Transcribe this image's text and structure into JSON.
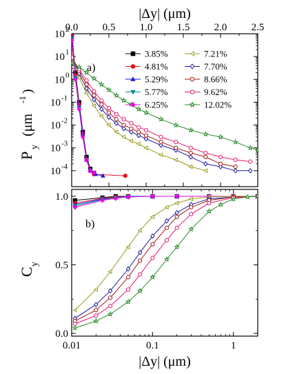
{
  "chart_data": [
    {
      "panel_label": "a)",
      "type": "line",
      "x_scale": "linear",
      "y_scale": "log",
      "xlabel": "|Δy| (μm)",
      "ylabel": "P",
      "ylabel_sub": "y",
      "ylabel_unit": "(μm",
      "ylabel_sup": "-1",
      "ylabel_close": ")",
      "xlim": [
        0,
        2.5
      ],
      "ylim": [
        2e-05,
        100
      ],
      "x_ticks": [
        "0.0",
        "0.5",
        "1.0",
        "1.5",
        "2.0",
        "2.5"
      ],
      "y_ticks": [
        {
          "base": "10",
          "exp": "2"
        },
        {
          "base": "10",
          "exp": "1"
        },
        {
          "base": "10",
          "exp": "0"
        },
        {
          "base": "10",
          "exp": "-1"
        },
        {
          "base": "10",
          "exp": "-2"
        },
        {
          "base": "10",
          "exp": "-3"
        },
        {
          "base": "10",
          "exp": "-4"
        }
      ],
      "legend_position": "top-right",
      "series": [
        {
          "name": "3.85%",
          "color": "#000000",
          "marker": "square",
          "filled": true,
          "x": [
            0.003,
            0.05,
            0.1,
            0.15,
            0.2,
            0.25,
            0.3
          ],
          "y": [
            100,
            2,
            0.1,
            0.005,
            0.0004,
            0.00012,
            8e-05
          ]
        },
        {
          "name": "4.81%",
          "color": "#e8101c",
          "marker": "circle",
          "filled": true,
          "x": [
            0.003,
            0.05,
            0.1,
            0.15,
            0.2,
            0.25,
            0.3,
            0.72
          ],
          "y": [
            80,
            1.5,
            0.08,
            0.004,
            0.0003,
            0.0001,
            7e-05,
            6e-05
          ]
        },
        {
          "name": "5.29%",
          "color": "#1a1ae0",
          "marker": "triangle-up",
          "filled": true,
          "x": [
            0.003,
            0.05,
            0.1,
            0.15,
            0.2,
            0.25,
            0.32,
            0.42
          ],
          "y": [
            70,
            1.3,
            0.07,
            0.004,
            0.0003,
            0.0001,
            7e-05,
            6e-05
          ]
        },
        {
          "name": "5.77%",
          "color": "#008b8b",
          "marker": "triangle-down",
          "filled": true,
          "x": [
            0.003,
            0.05,
            0.1,
            0.15,
            0.2,
            0.25,
            0.3
          ],
          "y": [
            60,
            1.2,
            0.06,
            0.003,
            0.0003,
            0.0001,
            8e-05
          ]
        },
        {
          "name": "6.25%",
          "color": "#ee00ee",
          "marker": "diamond",
          "filled": true,
          "x": [
            0.003,
            0.05,
            0.1,
            0.15,
            0.2,
            0.25,
            0.3
          ],
          "y": [
            50,
            1.0,
            0.05,
            0.003,
            0.0003,
            0.0001,
            8e-05
          ]
        },
        {
          "name": "7.21%",
          "color": "#9a9a1c",
          "marker": "triangle-left",
          "filled": false,
          "x": [
            0.003,
            0.1,
            0.2,
            0.3,
            0.4,
            0.5,
            0.6,
            0.7,
            0.8,
            0.9,
            1.0,
            1.2,
            1.4,
            1.6,
            1.8
          ],
          "y": [
            10,
            1.2,
            0.25,
            0.07,
            0.025,
            0.01,
            0.005,
            0.003,
            0.002,
            0.0015,
            0.001,
            0.0005,
            0.0003,
            0.00015,
            0.0001
          ]
        },
        {
          "name": "7.70%",
          "color": "#1c1c9a",
          "marker": "diamond",
          "filled": false,
          "x": [
            0.003,
            0.1,
            0.2,
            0.3,
            0.4,
            0.5,
            0.6,
            0.7,
            0.8,
            0.9,
            1.0,
            1.2,
            1.4,
            1.6,
            1.8,
            2.0,
            2.2,
            2.4
          ],
          "y": [
            10,
            1.8,
            0.4,
            0.13,
            0.05,
            0.022,
            0.012,
            0.007,
            0.005,
            0.0035,
            0.0025,
            0.0013,
            0.0008,
            0.0004,
            0.0002,
            0.00015,
            0.0001,
            0.0001
          ]
        },
        {
          "name": "8.66%",
          "color": "#a01818",
          "marker": "circle",
          "filled": false,
          "x": [
            0.003,
            0.1,
            0.2,
            0.3,
            0.4,
            0.5,
            0.6,
            0.7,
            0.8,
            0.9,
            1.0,
            1.2,
            1.4,
            1.6,
            1.8,
            2.0,
            2.2
          ],
          "y": [
            10,
            2.3,
            0.6,
            0.2,
            0.08,
            0.035,
            0.018,
            0.01,
            0.007,
            0.005,
            0.0035,
            0.0018,
            0.001,
            0.0006,
            0.0004,
            0.0002,
            0.00015
          ]
        },
        {
          "name": "9.62%",
          "color": "#e8186e",
          "marker": "circle",
          "filled": false,
          "x": [
            0.003,
            0.1,
            0.2,
            0.3,
            0.4,
            0.5,
            0.6,
            0.7,
            0.8,
            0.9,
            1.0,
            1.2,
            1.4,
            1.6,
            1.8,
            2.0,
            2.2,
            2.4
          ],
          "y": [
            9,
            2.8,
            0.9,
            0.3,
            0.12,
            0.055,
            0.03,
            0.018,
            0.012,
            0.008,
            0.006,
            0.003,
            0.0018,
            0.001,
            0.0006,
            0.0004,
            0.0003,
            0.00025
          ]
        },
        {
          "name": "12.02%",
          "color": "#2a8a2a",
          "marker": "star",
          "filled": false,
          "x": [
            0.003,
            0.1,
            0.2,
            0.3,
            0.4,
            0.5,
            0.6,
            0.7,
            0.8,
            0.9,
            1.0,
            1.2,
            1.4,
            1.6,
            1.8,
            2.0,
            2.2,
            2.4,
            2.5
          ],
          "y": [
            5,
            3.5,
            2,
            1.1,
            0.6,
            0.35,
            0.2,
            0.12,
            0.08,
            0.05,
            0.035,
            0.018,
            0.01,
            0.006,
            0.004,
            0.003,
            0.0018,
            0.001,
            0.0008
          ]
        }
      ]
    },
    {
      "panel_label": "b)",
      "type": "line",
      "x_scale": "log",
      "y_scale": "linear",
      "xlabel": "|Δy| (μm)",
      "ylabel": "C",
      "ylabel_sub": "y",
      "xlim": [
        0.01,
        2
      ],
      "ylim": [
        -0.02,
        1.05
      ],
      "x_ticks": [
        "0.01",
        "0.1",
        "1"
      ],
      "y_ticks": [
        "0.0",
        "0.5",
        "1.0"
      ],
      "series": [
        {
          "name": "3.85%",
          "color": "#000000",
          "marker": "square",
          "filled": true,
          "x": [
            0.011,
            0.024,
            0.035,
            0.05,
            0.1,
            0.2,
            0.5,
            1,
            2
          ],
          "y": [
            0.97,
            0.99,
            1.0,
            1.0,
            1.0,
            1.0,
            1.0,
            1.0,
            1.0
          ]
        },
        {
          "name": "4.81%",
          "color": "#e8101c",
          "marker": "circle",
          "filled": true,
          "x": [
            0.011,
            0.024,
            0.035,
            0.05,
            0.1,
            0.2,
            0.5,
            1,
            2
          ],
          "y": [
            0.95,
            0.985,
            0.995,
            1.0,
            1.0,
            1.0,
            1.0,
            1.0,
            1.0
          ]
        },
        {
          "name": "5.29%",
          "color": "#1a1ae0",
          "marker": "triangle-up",
          "filled": true,
          "x": [
            0.011,
            0.024,
            0.035,
            0.05,
            0.1,
            0.2,
            0.5,
            1,
            2
          ],
          "y": [
            0.94,
            0.98,
            0.99,
            1.0,
            1.0,
            1.0,
            1.0,
            1.0,
            1.0
          ]
        },
        {
          "name": "5.77%",
          "color": "#008b8b",
          "marker": "triangle-down",
          "filled": true,
          "x": [
            0.011,
            0.024,
            0.035,
            0.05,
            0.1,
            0.2,
            0.5,
            1,
            2
          ],
          "y": [
            0.93,
            0.975,
            0.99,
            0.995,
            1.0,
            1.0,
            1.0,
            1.0,
            1.0
          ]
        },
        {
          "name": "6.25%",
          "color": "#ee00ee",
          "marker": "diamond",
          "filled": true,
          "x": [
            0.011,
            0.024,
            0.035,
            0.05,
            0.1,
            0.2,
            0.5,
            1,
            2
          ],
          "y": [
            0.92,
            0.97,
            0.985,
            0.995,
            1.0,
            1.0,
            1.0,
            1.0,
            1.0
          ]
        },
        {
          "name": "7.21%",
          "color": "#9a9a1c",
          "marker": "triangle-left",
          "filled": false,
          "x": [
            0.011,
            0.02,
            0.03,
            0.05,
            0.07,
            0.1,
            0.15,
            0.2,
            0.3,
            0.5,
            1,
            2
          ],
          "y": [
            0.17,
            0.32,
            0.45,
            0.63,
            0.75,
            0.85,
            0.92,
            0.95,
            0.98,
            0.995,
            1.0,
            1.0
          ]
        },
        {
          "name": "7.70%",
          "color": "#1c1c9a",
          "marker": "diamond",
          "filled": false,
          "x": [
            0.011,
            0.02,
            0.03,
            0.05,
            0.07,
            0.1,
            0.15,
            0.2,
            0.3,
            0.5,
            1,
            2
          ],
          "y": [
            0.11,
            0.21,
            0.31,
            0.47,
            0.59,
            0.71,
            0.82,
            0.88,
            0.94,
            0.98,
            0.995,
            1.0
          ]
        },
        {
          "name": "8.66%",
          "color": "#a01818",
          "marker": "circle",
          "filled": false,
          "x": [
            0.011,
            0.02,
            0.03,
            0.05,
            0.07,
            0.1,
            0.15,
            0.2,
            0.3,
            0.5,
            1,
            2
          ],
          "y": [
            0.09,
            0.17,
            0.26,
            0.41,
            0.53,
            0.65,
            0.77,
            0.85,
            0.92,
            0.97,
            0.995,
            1.0
          ]
        },
        {
          "name": "9.62%",
          "color": "#e8186e",
          "marker": "circle",
          "filled": false,
          "x": [
            0.011,
            0.02,
            0.03,
            0.05,
            0.07,
            0.1,
            0.15,
            0.2,
            0.3,
            0.5,
            1,
            2
          ],
          "y": [
            0.07,
            0.13,
            0.2,
            0.32,
            0.43,
            0.55,
            0.68,
            0.77,
            0.87,
            0.95,
            0.99,
            1.0
          ]
        },
        {
          "name": "12.02%",
          "color": "#2a8a2a",
          "marker": "star",
          "filled": false,
          "x": [
            0.011,
            0.02,
            0.03,
            0.05,
            0.07,
            0.1,
            0.15,
            0.2,
            0.3,
            0.5,
            0.7,
            1,
            1.5,
            2
          ],
          "y": [
            0.04,
            0.09,
            0.14,
            0.23,
            0.31,
            0.41,
            0.54,
            0.63,
            0.76,
            0.89,
            0.94,
            0.98,
            0.995,
            1.0
          ]
        }
      ]
    }
  ]
}
